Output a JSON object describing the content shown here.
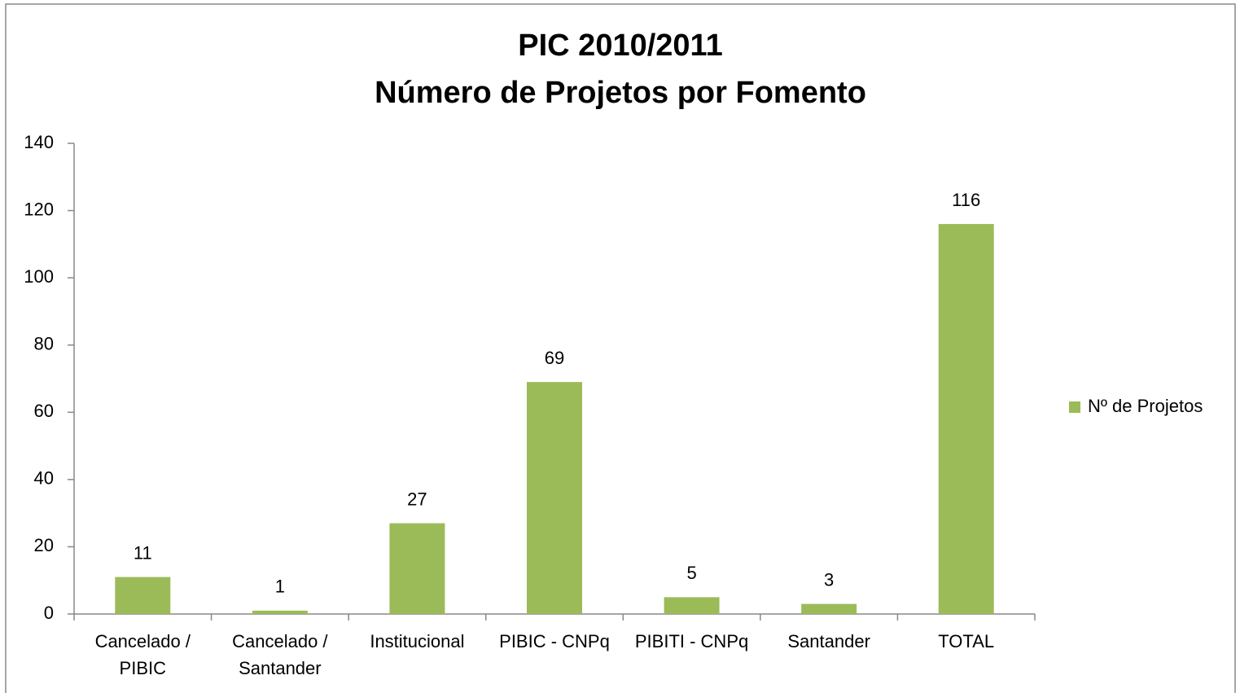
{
  "chart_data": {
    "type": "bar",
    "title": "PIC 2010/2011",
    "subtitle": "Número de Projetos por Fomento",
    "categories": [
      "Cancelado / PIBIC",
      "Cancelado / Santander",
      "Institucional",
      "PIBIC - CNPq",
      "PIBITI - CNPq",
      "Santander",
      "TOTAL"
    ],
    "series": [
      {
        "name": "Nº de Projetos",
        "color": "#9bbb59",
        "values": [
          11,
          1,
          27,
          69,
          5,
          3,
          116
        ]
      }
    ],
    "ylim": [
      0,
      140
    ],
    "yticks": [
      0,
      20,
      40,
      60,
      80,
      100,
      120,
      140
    ],
    "grid": false,
    "legend": "right"
  }
}
